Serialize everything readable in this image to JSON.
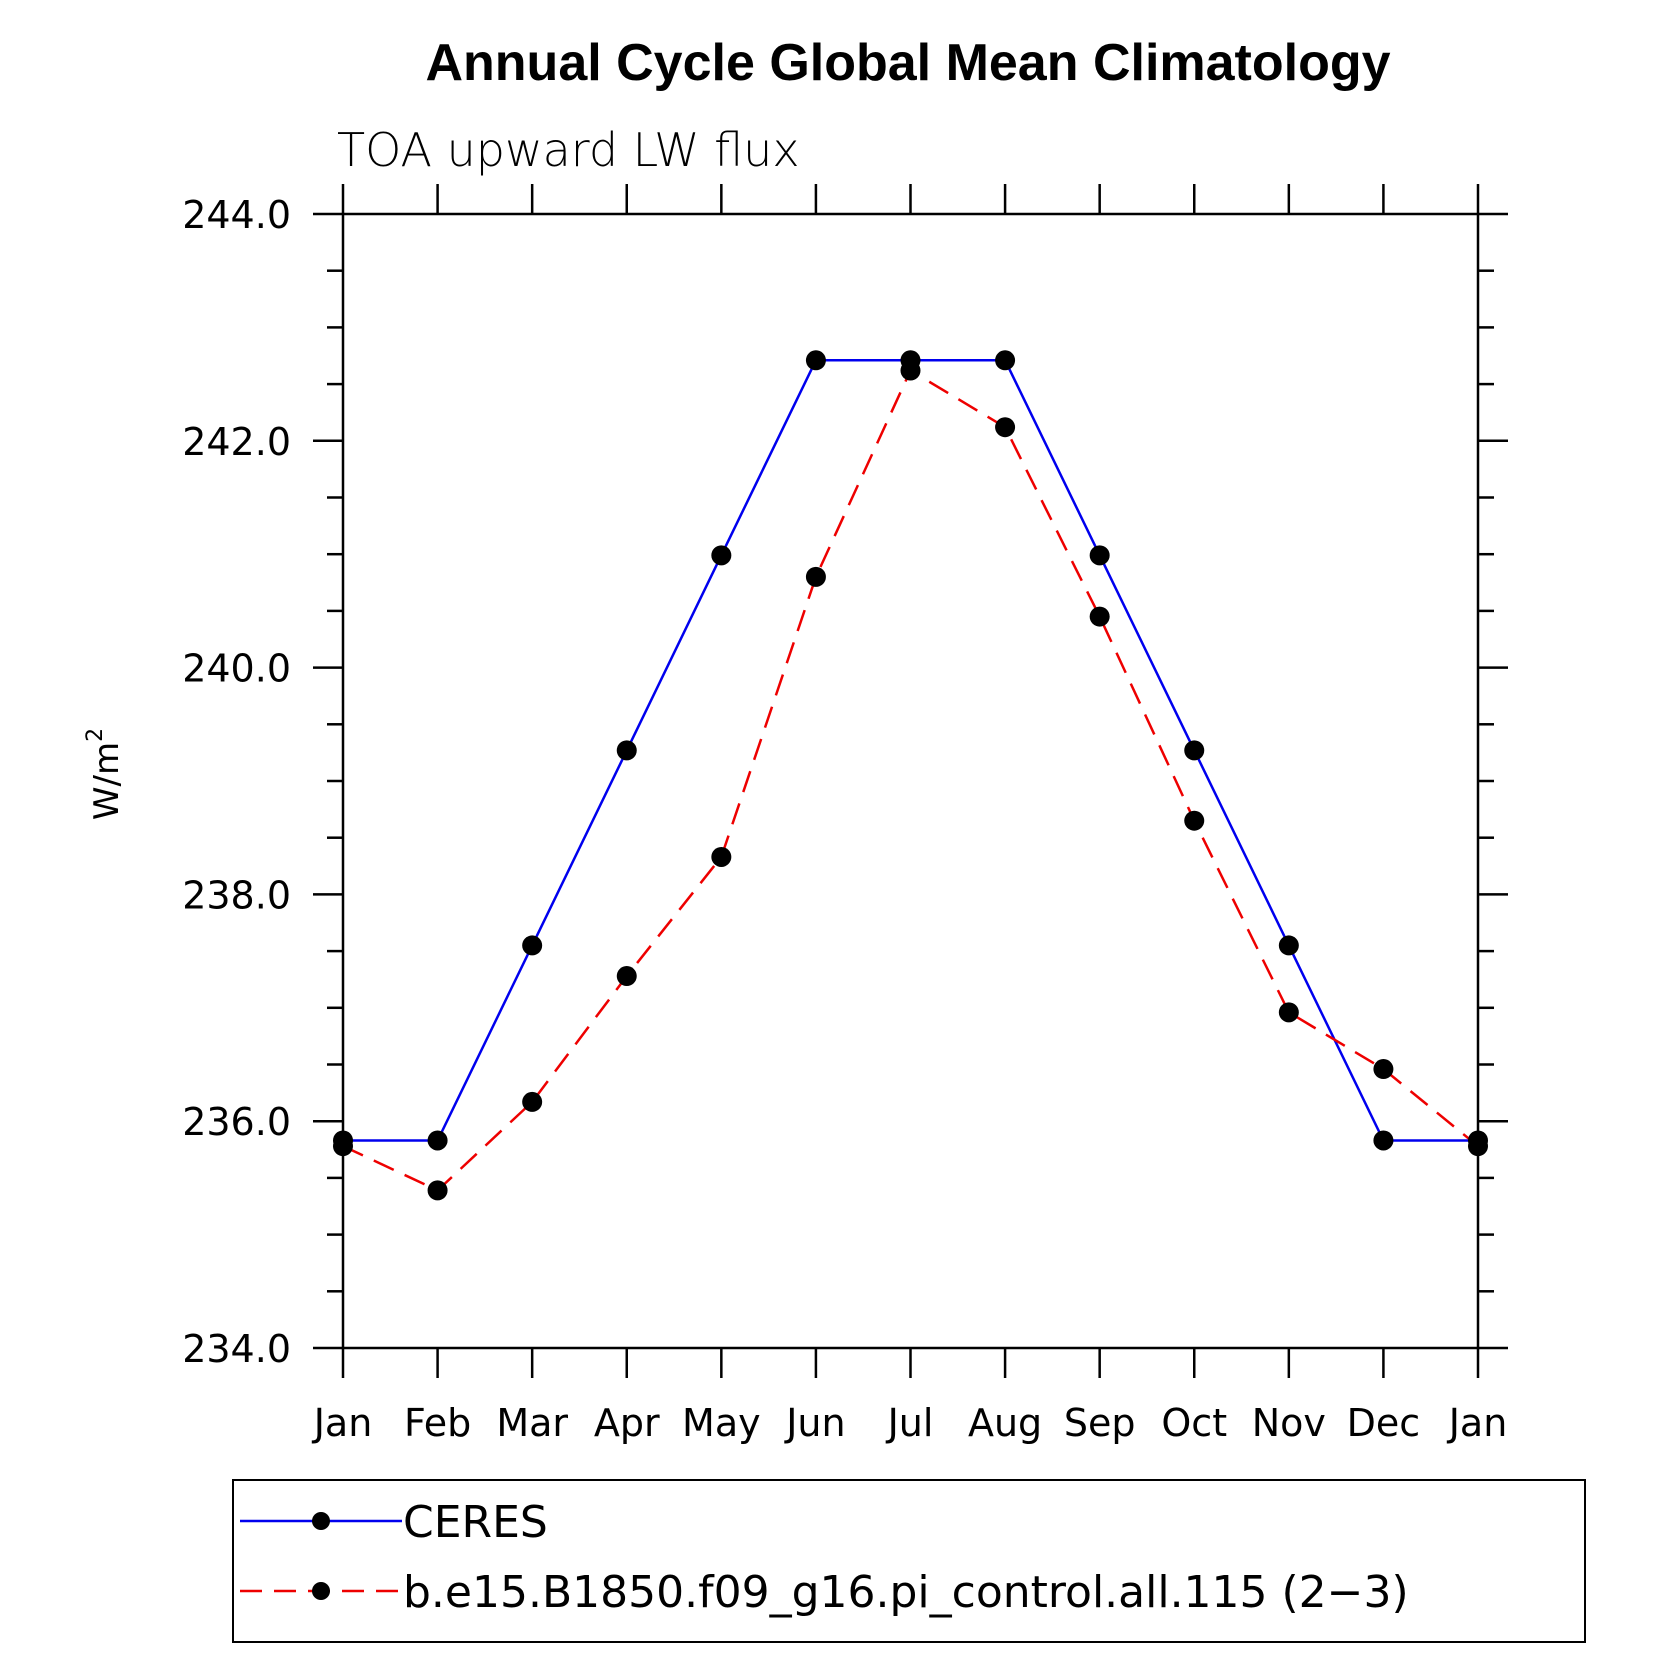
{
  "chart_data": {
    "type": "line",
    "title": "Annual Cycle Global Mean Climatology",
    "subtitle": "TOA upward LW flux",
    "ylabel": "W/m",
    "ylabel_superscript": "2",
    "xlabel": "",
    "categories": [
      "Jan",
      "Feb",
      "Mar",
      "Apr",
      "May",
      "Jun",
      "Jul",
      "Aug",
      "Sep",
      "Oct",
      "Nov",
      "Dec",
      "Jan"
    ],
    "ylim": [
      234.0,
      244.0
    ],
    "yticks": [
      "234.0",
      "236.0",
      "238.0",
      "240.0",
      "242.0",
      "244.0"
    ],
    "series": [
      {
        "name": "CERES",
        "color": "#0000ee",
        "dash": "solid",
        "values": [
          235.83,
          235.83,
          237.55,
          239.27,
          240.99,
          242.71,
          242.71,
          242.71,
          240.99,
          239.27,
          237.55,
          235.83,
          235.83
        ]
      },
      {
        "name": "b.e15.B1850.f09_g16.pi_control.all.115 (2−3)",
        "color": "#ee0000",
        "dash": "dashed",
        "values": [
          235.78,
          235.39,
          236.17,
          237.28,
          238.33,
          240.8,
          242.62,
          242.12,
          240.45,
          238.65,
          236.96,
          236.46,
          235.78
        ]
      }
    ]
  }
}
